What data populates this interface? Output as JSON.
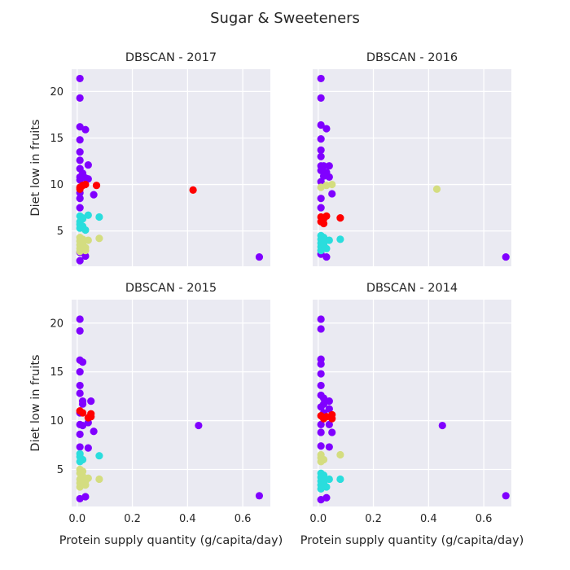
{
  "chart_data": {
    "type": "scatter",
    "title": "Sugar & Sweeteners",
    "xlabel": "Protein supply quantity (g/capita/day)",
    "ylabel": "Diet low in fruits",
    "xlim": [
      -0.02,
      0.7
    ],
    "ylim": [
      1.2,
      22.4
    ],
    "xticks": [
      0.0,
      0.2,
      0.4,
      0.6
    ],
    "yticks": [
      5,
      10,
      15,
      20
    ],
    "grid": true,
    "cluster_colors": {
      "0": "#8000ff",
      "1": "#2adddd",
      "2": "#d4dd80",
      "3": "#ff0000"
    },
    "subplots": [
      {
        "title": "DBSCAN - 2017",
        "points": [
          [
            0.01,
            21.4,
            0
          ],
          [
            0.01,
            19.3,
            0
          ],
          [
            0.01,
            16.2,
            0
          ],
          [
            0.03,
            15.9,
            0
          ],
          [
            0.01,
            14.8,
            0
          ],
          [
            0.01,
            13.5,
            0
          ],
          [
            0.01,
            12.6,
            0
          ],
          [
            0.01,
            11.7,
            0
          ],
          [
            0.02,
            11.2,
            0
          ],
          [
            0.04,
            12.1,
            0
          ],
          [
            0.01,
            10.8,
            0
          ],
          [
            0.03,
            10.7,
            0
          ],
          [
            0.01,
            10.5,
            0
          ],
          [
            0.02,
            10.9,
            0
          ],
          [
            0.04,
            10.6,
            0
          ],
          [
            0.01,
            9.1,
            0
          ],
          [
            0.01,
            8.5,
            0
          ],
          [
            0.06,
            8.9,
            0
          ],
          [
            0.01,
            7.5,
            0
          ],
          [
            0.01,
            2.7,
            0
          ],
          [
            0.03,
            2.3,
            0
          ],
          [
            0.01,
            1.8,
            0
          ],
          [
            0.66,
            2.2,
            0
          ],
          [
            0.01,
            9.7,
            3
          ],
          [
            0.02,
            9.9,
            3
          ],
          [
            0.03,
            10.0,
            3
          ],
          [
            0.07,
            9.9,
            3
          ],
          [
            0.42,
            9.4,
            3
          ],
          [
            0.01,
            9.5,
            3
          ],
          [
            0.01,
            6.6,
            1
          ],
          [
            0.02,
            6.4,
            1
          ],
          [
            0.01,
            6.0,
            1
          ],
          [
            0.01,
            5.7,
            1
          ],
          [
            0.02,
            5.5,
            1
          ],
          [
            0.01,
            5.3,
            1
          ],
          [
            0.03,
            5.1,
            1
          ],
          [
            0.04,
            6.7,
            1
          ],
          [
            0.08,
            6.5,
            1
          ],
          [
            0.02,
            6.3,
            1
          ],
          [
            0.01,
            4.3,
            2
          ],
          [
            0.02,
            4.1,
            2
          ],
          [
            0.01,
            3.9,
            2
          ],
          [
            0.02,
            3.7,
            2
          ],
          [
            0.01,
            3.5,
            2
          ],
          [
            0.02,
            3.3,
            2
          ],
          [
            0.01,
            3.1,
            2
          ],
          [
            0.03,
            2.9,
            2
          ],
          [
            0.04,
            4.0,
            2
          ],
          [
            0.08,
            4.2,
            2
          ],
          [
            0.01,
            2.8,
            2
          ],
          [
            0.02,
            3.6,
            2
          ],
          [
            0.03,
            3.2,
            2
          ]
        ]
      },
      {
        "title": "DBSCAN - 2016",
        "points": [
          [
            0.01,
            21.4,
            0
          ],
          [
            0.01,
            19.3,
            0
          ],
          [
            0.01,
            16.4,
            0
          ],
          [
            0.03,
            16.0,
            0
          ],
          [
            0.01,
            14.9,
            0
          ],
          [
            0.01,
            13.7,
            0
          ],
          [
            0.01,
            13.0,
            0
          ],
          [
            0.01,
            12.0,
            0
          ],
          [
            0.02,
            12.0,
            0
          ],
          [
            0.04,
            12.0,
            0
          ],
          [
            0.01,
            11.5,
            0
          ],
          [
            0.03,
            11.3,
            0
          ],
          [
            0.02,
            10.9,
            0
          ],
          [
            0.04,
            10.8,
            0
          ],
          [
            0.01,
            10.3,
            0
          ],
          [
            0.05,
            9.0,
            0
          ],
          [
            0.01,
            8.5,
            0
          ],
          [
            0.01,
            7.5,
            0
          ],
          [
            0.01,
            2.5,
            0
          ],
          [
            0.03,
            2.2,
            0
          ],
          [
            0.68,
            2.2,
            0
          ],
          [
            0.01,
            9.7,
            2
          ],
          [
            0.03,
            9.9,
            2
          ],
          [
            0.05,
            10.0,
            2
          ],
          [
            0.43,
            9.5,
            2
          ],
          [
            0.01,
            6.5,
            3
          ],
          [
            0.02,
            6.3,
            3
          ],
          [
            0.01,
            6.0,
            3
          ],
          [
            0.02,
            5.8,
            3
          ],
          [
            0.03,
            6.6,
            3
          ],
          [
            0.08,
            6.4,
            3
          ],
          [
            0.01,
            4.5,
            1
          ],
          [
            0.02,
            4.3,
            1
          ],
          [
            0.01,
            4.1,
            1
          ],
          [
            0.02,
            3.9,
            1
          ],
          [
            0.01,
            3.7,
            1
          ],
          [
            0.02,
            3.5,
            1
          ],
          [
            0.01,
            3.3,
            1
          ],
          [
            0.03,
            3.1,
            1
          ],
          [
            0.04,
            4.0,
            1
          ],
          [
            0.08,
            4.1,
            1
          ],
          [
            0.01,
            2.9,
            1
          ],
          [
            0.02,
            3.6,
            1
          ]
        ]
      },
      {
        "title": "DBSCAN - 2015",
        "points": [
          [
            0.01,
            20.4,
            0
          ],
          [
            0.01,
            19.2,
            0
          ],
          [
            0.01,
            16.2,
            0
          ],
          [
            0.02,
            16.0,
            0
          ],
          [
            0.01,
            15.0,
            0
          ],
          [
            0.01,
            13.6,
            0
          ],
          [
            0.01,
            12.8,
            0
          ],
          [
            0.02,
            12.0,
            0
          ],
          [
            0.02,
            11.7,
            0
          ],
          [
            0.05,
            12.0,
            0
          ],
          [
            0.01,
            10.8,
            0
          ],
          [
            0.04,
            9.8,
            0
          ],
          [
            0.01,
            9.6,
            0
          ],
          [
            0.02,
            9.5,
            0
          ],
          [
            0.01,
            8.6,
            0
          ],
          [
            0.06,
            8.9,
            0
          ],
          [
            0.04,
            7.2,
            0
          ],
          [
            0.01,
            7.3,
            0
          ],
          [
            0.44,
            9.5,
            0
          ],
          [
            0.01,
            2.0,
            0
          ],
          [
            0.03,
            2.2,
            0
          ],
          [
            0.66,
            2.3,
            0
          ],
          [
            0.01,
            11.0,
            3
          ],
          [
            0.02,
            10.8,
            3
          ],
          [
            0.04,
            10.3,
            3
          ],
          [
            0.05,
            10.7,
            3
          ],
          [
            0.05,
            10.4,
            3
          ],
          [
            0.01,
            6.6,
            1
          ],
          [
            0.01,
            6.3,
            1
          ],
          [
            0.02,
            6.0,
            1
          ],
          [
            0.01,
            5.8,
            1
          ],
          [
            0.08,
            6.4,
            1
          ],
          [
            0.01,
            5.0,
            2
          ],
          [
            0.02,
            4.8,
            2
          ],
          [
            0.01,
            4.6,
            2
          ],
          [
            0.02,
            4.3,
            2
          ],
          [
            0.01,
            4.0,
            2
          ],
          [
            0.02,
            3.8,
            2
          ],
          [
            0.01,
            3.6,
            2
          ],
          [
            0.03,
            3.4,
            2
          ],
          [
            0.04,
            4.1,
            2
          ],
          [
            0.08,
            4.0,
            2
          ],
          [
            0.01,
            3.2,
            2
          ],
          [
            0.03,
            3.8,
            2
          ]
        ]
      },
      {
        "title": "DBSCAN - 2014",
        "points": [
          [
            0.01,
            20.4,
            0
          ],
          [
            0.01,
            19.4,
            0
          ],
          [
            0.01,
            16.3,
            0
          ],
          [
            0.01,
            15.8,
            0
          ],
          [
            0.01,
            14.8,
            0
          ],
          [
            0.01,
            13.6,
            0
          ],
          [
            0.01,
            12.6,
            0
          ],
          [
            0.02,
            12.3,
            0
          ],
          [
            0.02,
            11.7,
            0
          ],
          [
            0.04,
            12.0,
            0
          ],
          [
            0.01,
            11.4,
            0
          ],
          [
            0.02,
            10.8,
            0
          ],
          [
            0.04,
            11.2,
            0
          ],
          [
            0.01,
            9.6,
            0
          ],
          [
            0.04,
            9.6,
            0
          ],
          [
            0.01,
            8.8,
            0
          ],
          [
            0.05,
            8.8,
            0
          ],
          [
            0.01,
            7.4,
            0
          ],
          [
            0.04,
            7.3,
            0
          ],
          [
            0.45,
            9.5,
            0
          ],
          [
            0.01,
            1.9,
            0
          ],
          [
            0.03,
            2.1,
            0
          ],
          [
            0.68,
            2.3,
            0
          ],
          [
            0.01,
            10.5,
            3
          ],
          [
            0.02,
            10.2,
            3
          ],
          [
            0.03,
            10.4,
            3
          ],
          [
            0.05,
            10.2,
            3
          ],
          [
            0.05,
            10.6,
            3
          ],
          [
            0.01,
            6.5,
            2
          ],
          [
            0.01,
            6.2,
            2
          ],
          [
            0.02,
            6.0,
            2
          ],
          [
            0.01,
            5.8,
            2
          ],
          [
            0.08,
            6.5,
            2
          ],
          [
            0.01,
            4.6,
            1
          ],
          [
            0.02,
            4.4,
            1
          ],
          [
            0.01,
            4.2,
            1
          ],
          [
            0.02,
            4.0,
            1
          ],
          [
            0.01,
            3.8,
            1
          ],
          [
            0.02,
            3.6,
            1
          ],
          [
            0.01,
            3.4,
            1
          ],
          [
            0.03,
            3.2,
            1
          ],
          [
            0.04,
            4.0,
            1
          ],
          [
            0.08,
            4.0,
            1
          ],
          [
            0.01,
            3.0,
            1
          ],
          [
            0.02,
            3.5,
            1
          ]
        ]
      }
    ]
  }
}
